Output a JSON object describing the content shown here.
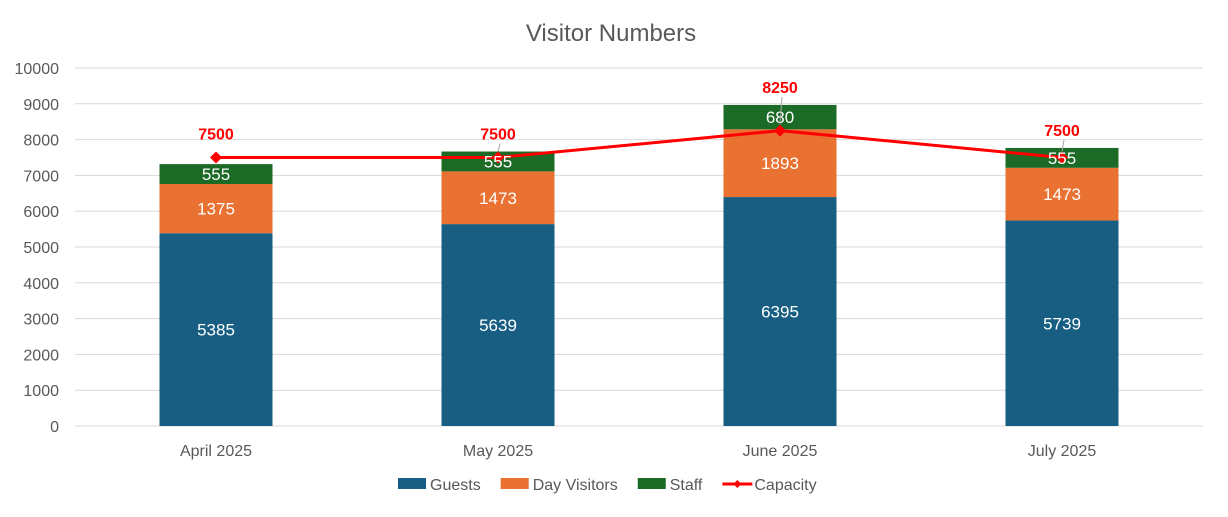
{
  "chart_data": {
    "type": "bar",
    "stacked": true,
    "title": "Visitor Numbers",
    "xlabel": "",
    "ylabel": "",
    "ylim": [
      0,
      10000
    ],
    "yticks": [
      0,
      1000,
      2000,
      3000,
      4000,
      5000,
      6000,
      7000,
      8000,
      9000,
      10000
    ],
    "grid": true,
    "legend_position": "bottom",
    "categories": [
      "April 2025",
      "May 2025",
      "June 2025",
      "July 2025"
    ],
    "series": [
      {
        "name": "Guests",
        "type": "bar",
        "color": "#175e82",
        "values": [
          5385,
          5639,
          6395,
          5739
        ]
      },
      {
        "name": "Day Visitors",
        "type": "bar",
        "color": "#e97132",
        "values": [
          1375,
          1473,
          1893,
          1473
        ]
      },
      {
        "name": "Staff",
        "type": "bar",
        "color": "#1b6b27",
        "values": [
          555,
          555,
          680,
          555
        ]
      },
      {
        "name": "Capacity",
        "type": "line",
        "color": "#ff0000",
        "marker": "diamond",
        "values": [
          7500,
          7500,
          8250,
          7500
        ]
      }
    ]
  }
}
